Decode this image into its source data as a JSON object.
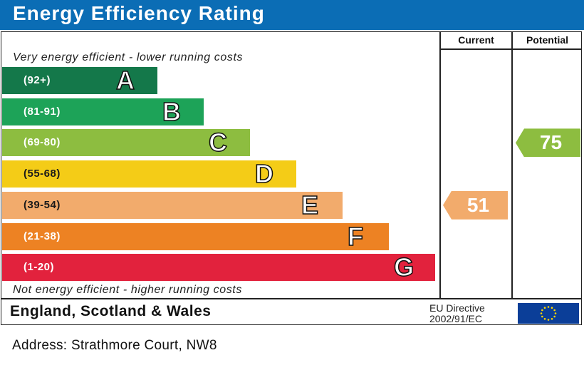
{
  "header": {
    "title": "Energy Efficiency Rating"
  },
  "columns": {
    "current": "Current",
    "potential": "Potential"
  },
  "notes": {
    "top": "Very energy efficient - lower running costs",
    "bottom": "Not energy efficient - higher running costs"
  },
  "footer": {
    "country": "England, Scotland & Wales",
    "directive_line1": "EU Directive",
    "directive_line2": "2002/91/EC"
  },
  "address": "Address: Strathmore Court, NW8",
  "chart_data": {
    "type": "bar",
    "title": "Energy Efficiency Rating",
    "categories": [
      "A",
      "B",
      "C",
      "D",
      "E",
      "F",
      "G"
    ],
    "ranges": [
      "(92+)",
      "(81-91)",
      "(69-80)",
      "(55-68)",
      "(39-54)",
      "(21-38)",
      "(1-20)"
    ],
    "colors": [
      "#14784a",
      "#1da358",
      "#8dbd40",
      "#f4cc17",
      "#f2ab6c",
      "#ed8223",
      "#e2223d"
    ],
    "current": {
      "value": 51,
      "band": "E",
      "color": "#f2ab6c"
    },
    "potential": {
      "value": 75,
      "band": "C",
      "color": "#8dbd40"
    }
  }
}
